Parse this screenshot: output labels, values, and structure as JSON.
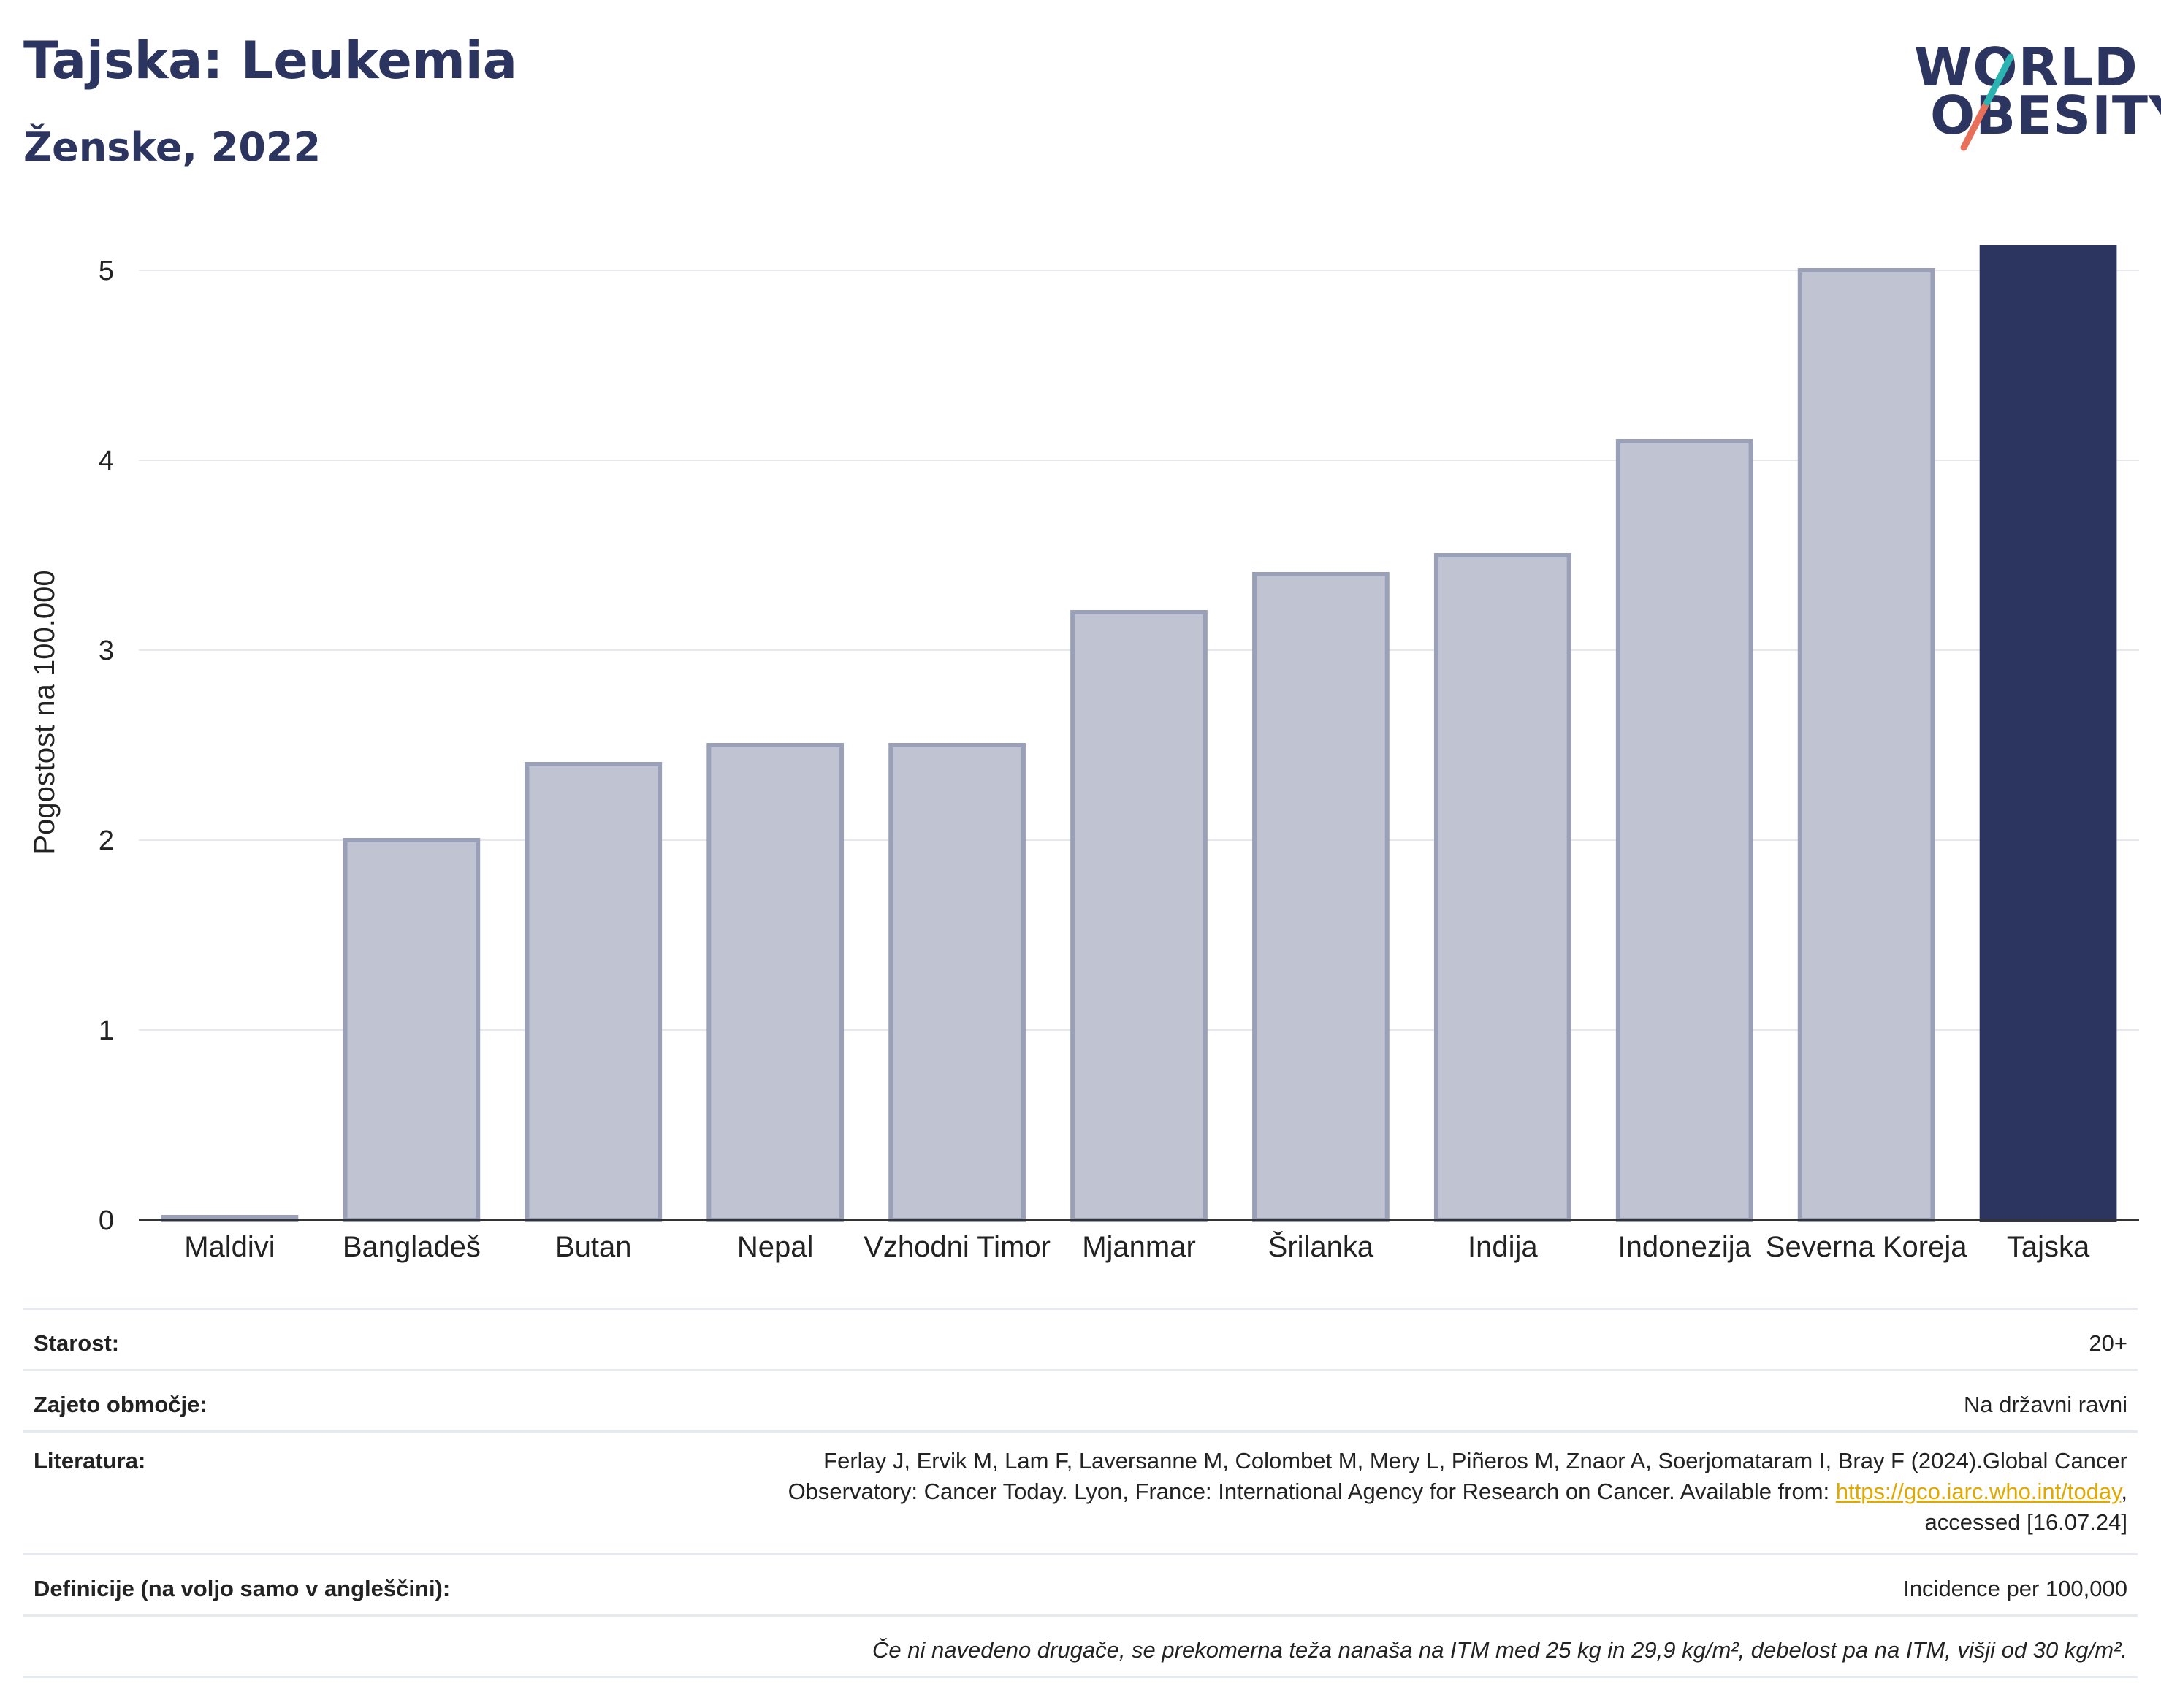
{
  "header": {
    "title": "Tajska: Leukemia",
    "subtitle": "Ženske, 2022"
  },
  "logo": {
    "line1": "WORLD",
    "line2": "OBESITY",
    "accent_colors": [
      "#2ab3b1",
      "#e8705a"
    ]
  },
  "colors": {
    "bar_default": "#c0c4d2",
    "bar_outline": "#9aa0b8",
    "bar_highlight": "#2b3560",
    "grid": "#e6e8ee",
    "text": "#2b3560"
  },
  "chart_data": {
    "type": "bar",
    "ylabel": "Pogostost na 100.000",
    "xlabel": "",
    "ylim": [
      0,
      5.2
    ],
    "yticks": [
      0,
      1,
      2,
      3,
      4,
      5
    ],
    "categories": [
      "Maldivi",
      "Bangladeš",
      "Butan",
      "Nepal",
      "Vzhodni Timor",
      "Mjanmar",
      "Šrilanka",
      "Indija",
      "Indonezija",
      "Severna Koreja",
      "Tajska"
    ],
    "values": [
      0,
      2.0,
      2.4,
      2.5,
      2.5,
      3.2,
      3.4,
      3.5,
      4.1,
      5.0,
      5.12
    ],
    "highlight": "Tajska",
    "grid": true
  },
  "info": {
    "age_label": "Starost:",
    "age_value": "20+",
    "coverage_label": "Zajeto območje:",
    "coverage_value": "Na državni ravni",
    "literature_label": "Literatura:",
    "literature_line1": "Ferlay J, Ervik M, Lam F, Laversanne M, Colombet M, Mery L, Piñeros M, Znaor A, Soerjomataram I, Bray F (2024).Global Cancer",
    "literature_line2_pre": "Observatory: Cancer Today. Lyon, France: International Agency for Research on Cancer. Available from: ",
    "literature_link": "https://gco.iarc.who.int/today",
    "literature_line2_post": ",",
    "literature_line3": "accessed [16.07.24]",
    "definitions_label": "Definicije (na voljo samo v angleščini):",
    "definitions_value": "Incidence per 100,000",
    "note": "Če ni navedeno drugače, se prekomerna teža nanaša na ITM med 25 kg in 29,9 kg/m², debelost pa na ITM, višji od 30 kg/m²."
  }
}
